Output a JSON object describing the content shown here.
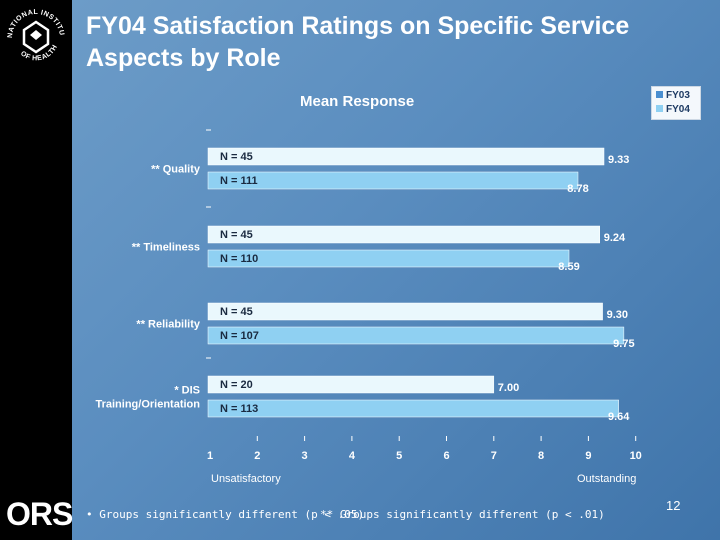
{
  "slide": {
    "title": "FY04 Satisfaction Ratings on Specific Service Aspects by Role",
    "page_number": "12",
    "footnote_single": "• Groups significantly different (p < .05)",
    "footnote_double": "** Groups significantly different (p < .01)",
    "ors_logo": "ORS",
    "nih_logo_text": "NATIONAL INSTITUTES OF HEALTH"
  },
  "colors": {
    "fy03": "#eaf8fd",
    "fy04": "#8fd0f2",
    "sidebar": "#000000",
    "text": "#ffffff"
  },
  "chart_data": {
    "type": "bar",
    "orientation": "horizontal",
    "title": "Mean Response",
    "xlim": [
      1,
      10
    ],
    "x_ticks": [
      "1",
      "2",
      "3",
      "4",
      "5",
      "6",
      "7",
      "8",
      "9",
      "10"
    ],
    "x_anchor_low": "Unsatisfactory",
    "x_anchor_high": "Outstanding",
    "legend_position": "top-right",
    "categories": [
      {
        "label": [
          "**  Quality"
        ]
      },
      {
        "label": [
          "** Timeliness"
        ]
      },
      {
        "label": [
          "** Reliability"
        ]
      },
      {
        "label": [
          "* DIS",
          "Training/Orientation"
        ]
      }
    ],
    "series": [
      {
        "name": "FY03",
        "values": [
          9.33,
          9.24,
          9.3,
          7.0
        ],
        "value_labels": [
          "9.33",
          "9.24",
          "9.30",
          "7.00"
        ],
        "n_labels": [
          "N = 45",
          "N = 45",
          "N = 45",
          "N = 20"
        ]
      },
      {
        "name": "FY04",
        "values": [
          8.78,
          8.59,
          9.75,
          9.64
        ],
        "value_labels": [
          "8.78",
          "8.59",
          "9.75",
          "9.64"
        ],
        "n_labels": [
          "N = 111",
          "N = 110",
          "N = 107",
          "N = 113"
        ]
      }
    ]
  }
}
